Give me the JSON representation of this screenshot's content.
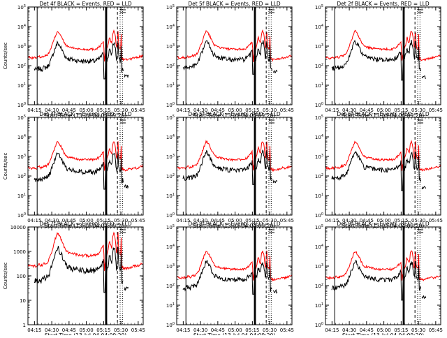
{
  "chart_data": [
    {
      "type": "line",
      "panel": "0",
      "title": "Det 4f BLACK = Events, RED = LLD",
      "xlabel": "Start Time (13-Jul-04 04:09:20)",
      "ylabel": "Counts/sec",
      "yscale": "log",
      "ylim": [
        1,
        100000
      ],
      "ytick_values": [
        1,
        10,
        100,
        1000,
        10000,
        100000
      ],
      "ytick_labels": [
        "10^0",
        "10^1",
        "10^2",
        "10^3",
        "10^4",
        "10^5"
      ],
      "black_scale": 0.25,
      "black_min": 35,
      "red_max": 10000,
      "series": [
        {
          "name": "BLACK",
          "color": "#000000"
        },
        {
          "name": "RED",
          "color": "#ff0000"
        }
      ]
    },
    {
      "type": "line",
      "panel": "1",
      "title": "Det 5f BLACK = Events, RED = LLD",
      "xlabel": "Start Time (13-Jul-04 04:09:20)",
      "ylabel": "",
      "yscale": "log",
      "ylim": [
        1,
        100000
      ],
      "ytick_values": [
        1,
        10,
        100,
        1000,
        10000,
        100000
      ],
      "ytick_labels": [
        "10^0",
        "10^1",
        "10^2",
        "10^3",
        "10^4",
        "10^5"
      ],
      "black_scale": 0.3,
      "black_min": 60,
      "red_max": 10000,
      "series": [
        {
          "name": "BLACK",
          "color": "#000000"
        },
        {
          "name": "RED",
          "color": "#ff0000"
        }
      ]
    },
    {
      "type": "line",
      "panel": "2",
      "title": "Det 2f BLACK = Events, RED = LLD",
      "xlabel": "Start Time (13-Jul-04 04:09:20)",
      "ylabel": "",
      "yscale": "log",
      "ylim": [
        1,
        100000
      ],
      "ytick_values": [
        1,
        10,
        100,
        1000,
        10000,
        100000
      ],
      "ytick_labels": [
        "10^0",
        "10^1",
        "10^2",
        "10^3",
        "10^4",
        "10^5"
      ],
      "black_scale": 0.3,
      "black_min": 30,
      "red_max": 10000,
      "series": [
        {
          "name": "BLACK",
          "color": "#000000"
        },
        {
          "name": "RED",
          "color": "#ff0000"
        }
      ]
    },
    {
      "type": "line",
      "panel": "3",
      "title": "Det 4f BLACK = Events, RED = LLD",
      "xlabel": "Start Time (13-Jul-04 04:09:20)",
      "ylabel": "Counts/sec",
      "yscale": "log",
      "ylim": [
        1,
        100000
      ],
      "ytick_values": [
        1,
        10,
        100,
        1000,
        10000,
        100000
      ],
      "ytick_labels": [
        "10^0",
        "10^1",
        "10^2",
        "10^3",
        "10^4",
        "10^5"
      ],
      "black_scale": 0.25,
      "black_min": 35,
      "red_max": 10000,
      "series": [
        {
          "name": "BLACK",
          "color": "#000000"
        },
        {
          "name": "RED",
          "color": "#ff0000"
        }
      ]
    },
    {
      "type": "line",
      "panel": "4",
      "title": "Det 5f BLACK = Events, RED = LLD",
      "xlabel": "Start Time (13-Jul-04 04:09:20)",
      "ylabel": "",
      "yscale": "log",
      "ylim": [
        1,
        100000
      ],
      "ytick_values": [
        1,
        10,
        100,
        1000,
        10000,
        100000
      ],
      "ytick_labels": [
        "10^0",
        "10^1",
        "10^2",
        "10^3",
        "10^4",
        "10^5"
      ],
      "black_scale": 0.3,
      "black_min": 60,
      "red_max": 10000,
      "series": [
        {
          "name": "BLACK",
          "color": "#000000"
        },
        {
          "name": "RED",
          "color": "#ff0000"
        }
      ]
    },
    {
      "type": "line",
      "panel": "5",
      "title": "Det 6f BLACK = Events, RED = LLD",
      "xlabel": "Start Time (13-Jul-04 04:09:20)",
      "ylabel": "",
      "yscale": "log",
      "ylim": [
        1,
        100000
      ],
      "ytick_values": [
        1,
        10,
        100,
        1000,
        10000,
        100000
      ],
      "ytick_labels": [
        "10^0",
        "10^1",
        "10^2",
        "10^3",
        "10^4",
        "10^5"
      ],
      "black_scale": 0.3,
      "black_min": 30,
      "red_max": 10000,
      "series": [
        {
          "name": "BLACK",
          "color": "#000000"
        },
        {
          "name": "RED",
          "color": "#ff0000"
        }
      ]
    },
    {
      "type": "line",
      "panel": "6",
      "title": "Det 7f BLACK = Events, RED = LLD",
      "xlabel": "Start Time (13-Jul-04 04:09:20)",
      "ylabel": "Counts/sec",
      "yscale": "log",
      "ylim": [
        1,
        10000
      ],
      "ytick_values": [
        1,
        10,
        100,
        1000,
        10000
      ],
      "ytick_labels": [
        "1",
        "10",
        "100",
        "1000",
        "10000"
      ],
      "black_scale": 0.25,
      "black_min": 35,
      "red_max": 8000,
      "series": [
        {
          "name": "BLACK",
          "color": "#000000"
        },
        {
          "name": "RED",
          "color": "#ff0000"
        }
      ]
    },
    {
      "type": "line",
      "panel": "7",
      "title": "Det 8f BLACK = Events, RED = LLD",
      "xlabel": "Start Time (13-Jul-04 04:09:20)",
      "ylabel": "",
      "yscale": "log",
      "ylim": [
        1,
        100000
      ],
      "ytick_values": [
        1,
        10,
        100,
        1000,
        10000,
        100000
      ],
      "ytick_labels": [
        "10^0",
        "10^1",
        "10^2",
        "10^3",
        "10^4",
        "10^5"
      ],
      "black_scale": 0.3,
      "black_min": 60,
      "red_max": 10000,
      "series": [
        {
          "name": "BLACK",
          "color": "#000000"
        },
        {
          "name": "RED",
          "color": "#ff0000"
        }
      ]
    },
    {
      "type": "line",
      "panel": "8",
      "title": "Det 9f BLACK = Events, RED = LLD",
      "xlabel": "Start Time (13-Jul-04 04:09:20)",
      "ylabel": "",
      "yscale": "log",
      "ylim": [
        1,
        100000
      ],
      "ytick_values": [
        1,
        10,
        100,
        1000,
        10000,
        100000
      ],
      "ytick_labels": [
        "10^0",
        "10^1",
        "10^2",
        "10^3",
        "10^4",
        "10^5"
      ],
      "black_scale": 0.3,
      "black_min": 30,
      "red_max": 10000,
      "series": [
        {
          "name": "BLACK",
          "color": "#000000"
        },
        {
          "name": "RED",
          "color": "#ff0000"
        }
      ]
    }
  ],
  "shared": {
    "x_tick_labels": [
      "04:15",
      "04:30",
      "04:45",
      "05:00",
      "05:15",
      "05:30",
      "05:45"
    ],
    "x_tick_minutes": [
      15.0,
      30.0,
      45.0,
      60.0,
      75.0,
      90.0,
      105.0
    ],
    "x_range_minutes": [
      9.33,
      109.33
    ],
    "red_profile": {
      "x_minutes": [
        9.33,
        11,
        13,
        15,
        17,
        19,
        21,
        23,
        25,
        27,
        29,
        31,
        33,
        35,
        37,
        39,
        41,
        43,
        45,
        47,
        49,
        51,
        53,
        55,
        57,
        59,
        61,
        63,
        65,
        67,
        69,
        71,
        73,
        75,
        75.6,
        76.2,
        77,
        78,
        79,
        80,
        81,
        82,
        83,
        84,
        85,
        86,
        86.6,
        87,
        87.4,
        88,
        89,
        90,
        90.4,
        90.7,
        91,
        91.6,
        92,
        93,
        95,
        97,
        99,
        101,
        103,
        105,
        107,
        109.33
      ],
      "y_values": [
        280,
        260,
        240,
        270,
        250,
        300,
        260,
        320,
        330,
        400,
        700,
        1500,
        3200,
        6000,
        4200,
        2500,
        1400,
        1000,
        900,
        850,
        800,
        760,
        720,
        700,
        680,
        700,
        650,
        720,
        700,
        680,
        760,
        900,
        1200,
        1800,
        150,
        350,
        500,
        800,
        1200,
        3000,
        1800,
        1400,
        4500,
        6000,
        4000,
        900,
        800,
        3500,
        8000,
        1200,
        700,
        800,
        10000,
        200,
        230,
        250,
        200,
        210,
        200,
        230,
        220,
        260,
        250,
        270,
        300,
        320
      ]
    },
    "markers_minutes": {
      "solid": [
        17.33,
        76.8,
        77.6
      ],
      "dotted": [
        89.33,
        91.33
      ],
      "dashed": [
        87.0
      ]
    }
  }
}
